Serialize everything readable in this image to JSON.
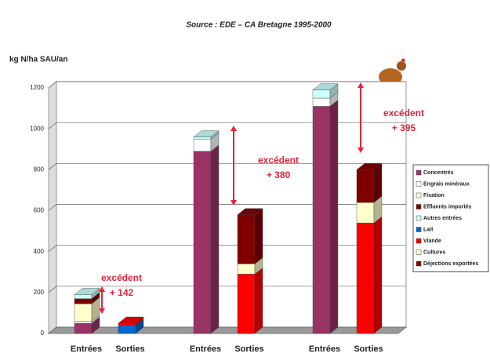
{
  "chart_data": {
    "type": "bar3d_stacked",
    "title": "Source : EDE – CA Bretagne 1995-2000",
    "y_label": "kg N/ha SAU/an",
    "categories": [
      "Entrées",
      "Sorties",
      "Entrées",
      "Sorties",
      "Entrées",
      "Sorties"
    ],
    "series": [
      {
        "name": "Concentrés",
        "color": "#993366",
        "values": [
          50,
          null,
          890,
          null,
          1110,
          null
        ]
      },
      {
        "name": "Engrais minéraux",
        "color": "#ffffff",
        "values": [
          10,
          null,
          60,
          null,
          40,
          null
        ]
      },
      {
        "name": "Fixation",
        "color": "#ffffcc",
        "values": [
          85,
          null,
          null,
          null,
          null,
          null
        ]
      },
      {
        "name": "Effluents importés",
        "color": "#800000",
        "values": [
          25,
          null,
          null,
          null,
          null,
          null
        ]
      },
      {
        "name": "Autres entrées",
        "color": "#ccffff",
        "values": [
          20,
          null,
          10,
          null,
          40,
          null
        ]
      },
      {
        "name": "Lait",
        "color": "#0066cc",
        "values": [
          null,
          40,
          null,
          null,
          null,
          null
        ]
      },
      {
        "name": "Viande",
        "color": "#ff0000",
        "values": [
          null,
          10,
          null,
          290,
          null,
          540
        ]
      },
      {
        "name": "Cultures",
        "color": "#ffffcc",
        "values": [
          null,
          null,
          null,
          50,
          null,
          100
        ]
      },
      {
        "name": "Déjections exportées",
        "color": "#800000",
        "values": [
          null,
          null,
          null,
          240,
          null,
          160
        ]
      }
    ],
    "annotations": [
      {
        "text": "excédent",
        "value": "+ 142"
      },
      {
        "text": "excédent",
        "value": "+ 380"
      },
      {
        "text": "excédent",
        "value": "+ 395"
      }
    ],
    "ylim": [
      0,
      1200
    ],
    "yticks": [
      0,
      200,
      400,
      600,
      800,
      1000,
      1200
    ],
    "grid": true
  }
}
